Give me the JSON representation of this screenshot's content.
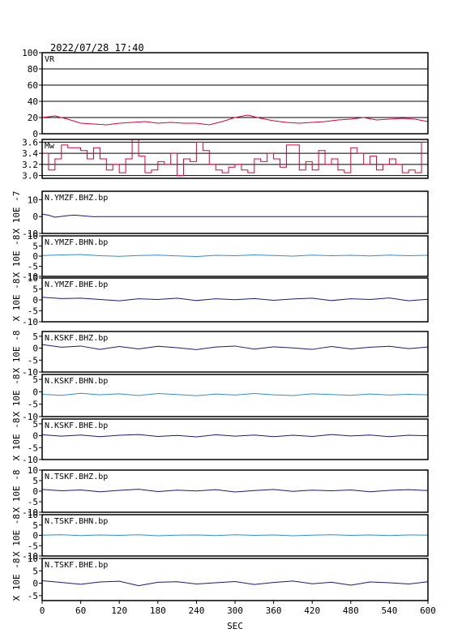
{
  "header": {
    "timestamp": "2022/07/28  17:40"
  },
  "colors": {
    "frame": "#000000",
    "vr_line": "#e0003c",
    "mw_line": "#e0003c",
    "trace_dark": "#1a1a80",
    "trace_light": "#2f8fd0",
    "grid": "#000000"
  },
  "x_axis": {
    "label": "SEC",
    "range": [
      0,
      600
    ],
    "ticks": [
      0,
      60,
      120,
      180,
      240,
      300,
      360,
      420,
      480,
      540,
      600
    ],
    "tick_labels": [
      "0",
      "60",
      "120",
      "180",
      "240",
      "300",
      "360",
      "420",
      "480",
      "540",
      "600"
    ]
  },
  "chart_data": [
    {
      "type": "line",
      "name": "VR",
      "label": "VR",
      "ylim": [
        0,
        100
      ],
      "yticks": [
        0,
        20,
        40,
        60,
        80,
        100
      ],
      "ytick_labels": [
        "0",
        "20",
        "40",
        "60",
        "80",
        "100"
      ],
      "grid": true,
      "x": [
        0,
        20,
        40,
        60,
        80,
        100,
        120,
        140,
        160,
        180,
        200,
        220,
        240,
        260,
        280,
        300,
        320,
        340,
        360,
        380,
        400,
        420,
        440,
        460,
        480,
        500,
        520,
        540,
        560,
        580,
        600
      ],
      "y": [
        20,
        22,
        18,
        13,
        12,
        11,
        13,
        14,
        15,
        13,
        14,
        13,
        13,
        11,
        15,
        20,
        23,
        19,
        16,
        14,
        13,
        14,
        15,
        17,
        18,
        20,
        17,
        18,
        19,
        18,
        15
      ]
    },
    {
      "type": "line",
      "name": "Mw",
      "label": "Mw",
      "ylim": [
        2.95,
        3.65
      ],
      "yticks": [
        3.0,
        3.2,
        3.4,
        3.6
      ],
      "ytick_labels": [
        "3.0",
        "3.2",
        "3.4",
        "3.6"
      ],
      "grid": true,
      "x": [
        0,
        10,
        20,
        30,
        40,
        50,
        60,
        70,
        80,
        90,
        100,
        110,
        120,
        130,
        140,
        150,
        160,
        170,
        180,
        190,
        200,
        210,
        220,
        230,
        240,
        250,
        260,
        270,
        280,
        290,
        300,
        310,
        320,
        330,
        340,
        350,
        360,
        370,
        380,
        390,
        400,
        410,
        420,
        430,
        440,
        450,
        460,
        470,
        480,
        490,
        500,
        510,
        520,
        530,
        540,
        550,
        560,
        570,
        580,
        590,
        600
      ],
      "y": [
        3.4,
        3.1,
        3.3,
        3.55,
        3.5,
        3.5,
        3.45,
        3.3,
        3.5,
        3.3,
        3.1,
        3.2,
        3.05,
        3.3,
        3.65,
        3.35,
        3.05,
        3.1,
        3.25,
        3.2,
        3.4,
        3.0,
        3.3,
        3.25,
        3.6,
        3.45,
        3.2,
        3.1,
        3.05,
        3.15,
        3.2,
        3.1,
        3.05,
        3.3,
        3.25,
        3.4,
        3.3,
        3.15,
        3.55,
        3.55,
        3.1,
        3.25,
        3.1,
        3.45,
        3.2,
        3.3,
        3.1,
        3.05,
        3.5,
        3.4,
        3.2,
        3.35,
        3.1,
        3.2,
        3.3,
        3.2,
        3.05,
        3.1,
        3.05,
        3.6,
        3.15
      ]
    },
    {
      "type": "line",
      "name": "N.YMZF.BHZ.bp",
      "label": "N.YMZF.BHZ.bp",
      "unit_label": "X 10E -7",
      "ylim": [
        -10,
        15
      ],
      "yticks": [
        -10,
        0,
        10
      ],
      "ytick_labels": [
        "-10",
        "0",
        "10"
      ],
      "color": "dark",
      "x": [
        0,
        10,
        20,
        30,
        40,
        50,
        60,
        70,
        80,
        90,
        100,
        600
      ],
      "y": [
        1.5,
        0.8,
        -0.4,
        0.1,
        0.6,
        0.9,
        0.6,
        0.2,
        -0.1,
        0.0,
        0.0,
        0.0
      ]
    },
    {
      "type": "line",
      "name": "N.YMZF.BHN.bp",
      "label": "N.YMZF.BHN.bp",
      "unit_label": "X 10E -8",
      "ylim": [
        -10,
        10
      ],
      "yticks": [
        -10,
        -5,
        0,
        5,
        10
      ],
      "ytick_labels": [
        "-10",
        "-5",
        "0",
        "5",
        "10"
      ],
      "color": "light",
      "x": [
        0,
        30,
        60,
        90,
        120,
        150,
        180,
        210,
        240,
        270,
        300,
        330,
        360,
        390,
        420,
        450,
        480,
        510,
        540,
        570,
        600
      ],
      "y": [
        0.3,
        0.6,
        0.8,
        0.2,
        -0.1,
        0.3,
        0.5,
        0.1,
        -0.2,
        0.4,
        0.2,
        0.6,
        0.3,
        0.0,
        0.5,
        0.2,
        0.4,
        0.1,
        0.5,
        0.2,
        0.4
      ]
    },
    {
      "type": "line",
      "name": "N.YMZF.BHE.bp",
      "label": "N.YMZF.BHE.bp",
      "unit_label": "X 10E -8",
      "ylim": [
        -10,
        10
      ],
      "yticks": [
        -10,
        -5,
        0,
        5,
        10
      ],
      "ytick_labels": [
        "-10",
        "-5",
        "0",
        "5",
        "10"
      ],
      "color": "dark",
      "x": [
        0,
        30,
        60,
        90,
        120,
        150,
        180,
        210,
        240,
        270,
        300,
        330,
        360,
        390,
        420,
        450,
        480,
        510,
        540,
        570,
        600
      ],
      "y": [
        1.2,
        0.6,
        0.8,
        0.2,
        -0.4,
        0.5,
        0.2,
        0.8,
        -0.3,
        0.5,
        0.1,
        0.6,
        -0.2,
        0.4,
        0.8,
        -0.3,
        0.5,
        0.2,
        0.9,
        -0.4,
        0.3
      ]
    },
    {
      "type": "line",
      "name": "N.KSKF.BHZ.bp",
      "label": "N.KSKF.BHZ.bp",
      "unit_label": "X 10E -8",
      "ylim": [
        -10,
        7
      ],
      "yticks": [
        -10,
        -5,
        0,
        5
      ],
      "ytick_labels": [
        "-10",
        "-5",
        "0",
        "5"
      ],
      "color": "dark",
      "x": [
        0,
        30,
        60,
        90,
        120,
        150,
        180,
        210,
        240,
        270,
        300,
        330,
        360,
        390,
        420,
        450,
        480,
        510,
        540,
        570,
        600
      ],
      "y": [
        1.5,
        0.4,
        0.9,
        -0.5,
        0.7,
        -0.3,
        0.8,
        0.2,
        -0.6,
        0.5,
        0.9,
        -0.4,
        0.6,
        0.1,
        -0.5,
        0.7,
        -0.3,
        0.4,
        0.8,
        -0.2,
        0.5
      ]
    },
    {
      "type": "line",
      "name": "N.KSKF.BHN.bp",
      "label": "N.KSKF.BHN.bp",
      "unit_label": "X 10E -8",
      "ylim": [
        -10,
        7
      ],
      "yticks": [
        -10,
        -5,
        0,
        5
      ],
      "ytick_labels": [
        "-10",
        "-5",
        "0",
        "5"
      ],
      "color": "light",
      "x": [
        0,
        30,
        60,
        90,
        120,
        150,
        180,
        210,
        240,
        270,
        300,
        330,
        360,
        390,
        420,
        450,
        480,
        510,
        540,
        570,
        600
      ],
      "y": [
        -1.0,
        -1.4,
        -0.6,
        -1.2,
        -0.8,
        -1.5,
        -0.7,
        -1.1,
        -1.6,
        -0.9,
        -1.3,
        -0.7,
        -1.2,
        -1.5,
        -0.8,
        -1.1,
        -1.4,
        -0.9,
        -1.3,
        -1.0,
        -1.2
      ]
    },
    {
      "type": "line",
      "name": "N.KSKF.BHE.bp",
      "label": "N.KSKF.BHE.bp",
      "unit_label": "X 10E -8",
      "ylim": [
        -10,
        7
      ],
      "yticks": [
        -10,
        -5,
        0,
        5
      ],
      "ytick_labels": [
        "-10",
        "-5",
        "0",
        "5"
      ],
      "color": "dark",
      "x": [
        0,
        30,
        60,
        90,
        120,
        150,
        180,
        210,
        240,
        270,
        300,
        330,
        360,
        390,
        420,
        450,
        480,
        510,
        540,
        570,
        600
      ],
      "y": [
        0.4,
        -0.2,
        0.3,
        -0.4,
        0.2,
        0.5,
        -0.3,
        0.1,
        -0.5,
        0.4,
        -0.2,
        0.3,
        -0.4,
        0.2,
        -0.3,
        0.5,
        -0.1,
        0.3,
        -0.4,
        0.2,
        0.0
      ]
    },
    {
      "type": "line",
      "name": "N.TSKF.BHZ.bp",
      "label": "N.TSKF.BHZ.bp",
      "unit_label": "X 10E -8",
      "ylim": [
        -10,
        10
      ],
      "yticks": [
        -10,
        -5,
        0,
        5,
        10
      ],
      "ytick_labels": [
        "-10",
        "-5",
        "0",
        "5",
        "10"
      ],
      "color": "dark",
      "x": [
        0,
        30,
        60,
        90,
        120,
        150,
        180,
        210,
        240,
        270,
        300,
        330,
        360,
        390,
        420,
        450,
        480,
        510,
        540,
        570,
        600
      ],
      "y": [
        0.8,
        0.2,
        0.6,
        -0.3,
        0.4,
        0.9,
        -0.2,
        0.5,
        0.1,
        0.7,
        -0.4,
        0.3,
        0.8,
        -0.1,
        0.5,
        0.2,
        0.6,
        -0.3,
        0.4,
        0.7,
        0.3
      ]
    },
    {
      "type": "line",
      "name": "N.TSKF.BHN.bp",
      "label": "N.TSKF.BHN.bp",
      "unit_label": "X 10E -8",
      "ylim": [
        -10,
        10
      ],
      "yticks": [
        -10,
        -5,
        0,
        5,
        10
      ],
      "ytick_labels": [
        "-10",
        "-5",
        "0",
        "5",
        "10"
      ],
      "color": "light",
      "x": [
        0,
        30,
        60,
        90,
        120,
        150,
        180,
        210,
        240,
        270,
        300,
        330,
        360,
        390,
        420,
        450,
        480,
        510,
        540,
        570,
        600
      ],
      "y": [
        0.1,
        0.3,
        -0.1,
        0.2,
        0.0,
        0.3,
        -0.2,
        0.1,
        0.2,
        -0.1,
        0.3,
        0.0,
        0.2,
        -0.2,
        0.1,
        0.3,
        0.0,
        0.2,
        -0.1,
        0.2,
        0.1
      ]
    },
    {
      "type": "line",
      "name": "N.TSKF.BHE.bp",
      "label": "N.TSKF.BHE.bp",
      "unit_label": "X 10E -8",
      "ylim": [
        -7,
        10
      ],
      "yticks": [
        -5,
        0,
        5,
        10
      ],
      "ytick_labels": [
        "-5",
        "0",
        "5",
        "10"
      ],
      "color": "dark",
      "x": [
        0,
        30,
        60,
        90,
        120,
        150,
        180,
        210,
        240,
        270,
        300,
        330,
        360,
        390,
        420,
        450,
        480,
        510,
        540,
        570,
        600
      ],
      "y": [
        1.0,
        0.3,
        -0.4,
        0.5,
        0.8,
        -1.0,
        0.4,
        0.6,
        -0.3,
        0.2,
        0.7,
        -0.5,
        0.3,
        0.9,
        -0.2,
        0.4,
        -0.8,
        0.5,
        0.2,
        -0.3,
        0.6
      ]
    }
  ]
}
